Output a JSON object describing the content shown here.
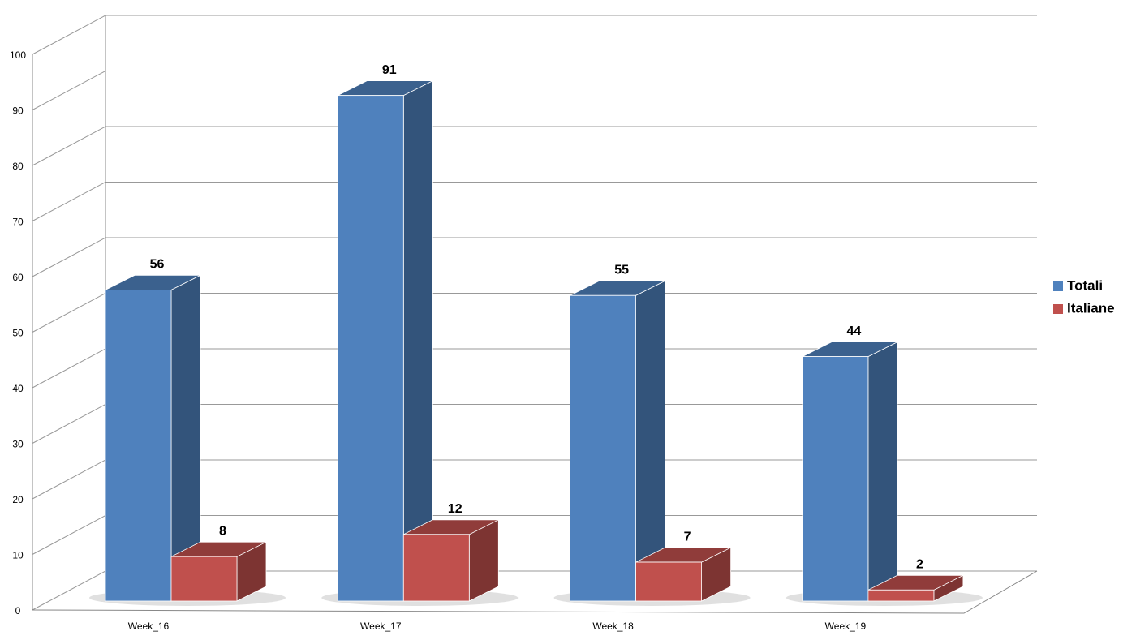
{
  "chart_data": {
    "type": "bar3d",
    "categories": [
      "Week_16",
      "Week_17",
      "Week_18",
      "Week_19"
    ],
    "series": [
      {
        "name": "Totali",
        "color": "#4f81bd",
        "values": [
          56,
          91,
          55,
          44
        ]
      },
      {
        "name": "Italiane",
        "color": "#c0504d",
        "values": [
          8,
          12,
          7,
          2
        ]
      }
    ],
    "ylim": [
      0,
      100
    ],
    "yticks": [
      0,
      10,
      20,
      30,
      40,
      50,
      60,
      70,
      80,
      90,
      100
    ],
    "grid": true,
    "legend": "right"
  }
}
